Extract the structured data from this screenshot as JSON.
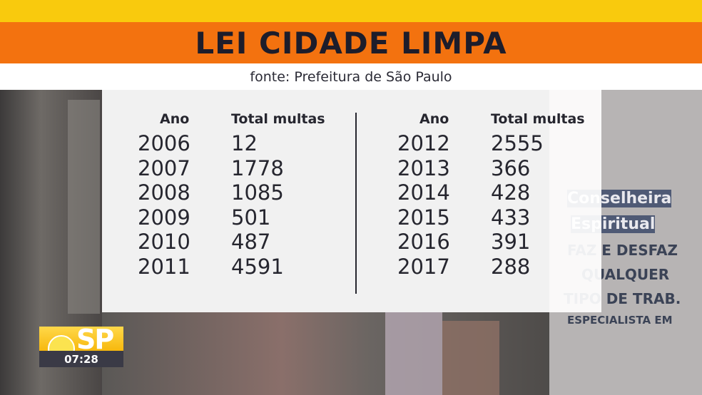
{
  "title": "LEI CIDADE LIMPA",
  "source": "fonte: Prefeitura de São Paulo",
  "table": {
    "left": {
      "year_header": "Ano",
      "value_header": "Total multas",
      "rows": [
        {
          "year": "2006",
          "value": "12"
        },
        {
          "year": "2007",
          "value": "1778"
        },
        {
          "year": "2008",
          "value": "1085"
        },
        {
          "year": "2009",
          "value": "501"
        },
        {
          "year": "2010",
          "value": "487"
        },
        {
          "year": "2011",
          "value": "4591"
        }
      ]
    },
    "right": {
      "year_header": "Ano",
      "value_header": "Total multas",
      "rows": [
        {
          "year": "2012",
          "value": "2555"
        },
        {
          "year": "2013",
          "value": "366"
        },
        {
          "year": "2014",
          "value": "428"
        },
        {
          "year": "2015",
          "value": "433"
        },
        {
          "year": "2016",
          "value": "391"
        },
        {
          "year": "2017",
          "value": "288"
        }
      ]
    }
  },
  "logo": {
    "text": "SP",
    "time": "07:28",
    "icon": "sun-icon"
  },
  "poster": {
    "lines": [
      "Conselheira",
      "Espiritual",
      "FAZ E DESFAZ",
      "QUALQUER",
      "TIPO DE TRAB.",
      "ESPECIALISTA EM"
    ]
  },
  "colors": {
    "yellow_stripe": "#f9ca0d",
    "title_bar": "#f3720f",
    "text_dark": "#26262f"
  }
}
